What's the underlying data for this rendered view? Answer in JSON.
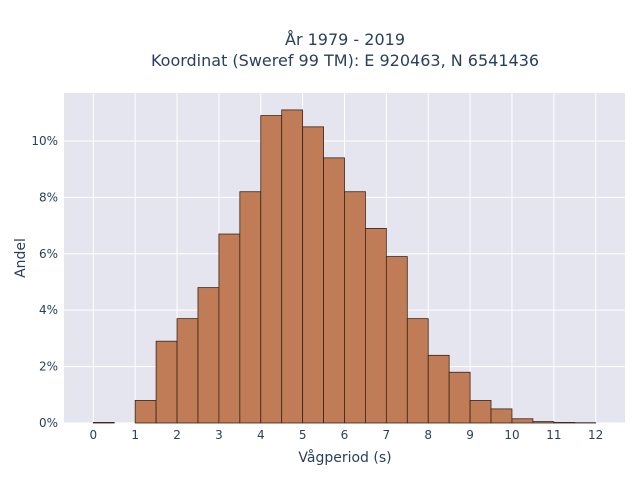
{
  "title_line1": "År 1979 - 2019",
  "title_line2": "Koordinat (Sweref 99 TM): E 920463, N 6541436",
  "colors": {
    "plot_background": "#e5e5ef",
    "bar_fill": "#c07c56",
    "bar_edge": "#3a2418",
    "text": "#2a3f5f"
  },
  "chart_data": {
    "type": "bar",
    "title": "År 1979 - 2019\nKoordinat (Sweref 99 TM): E 920463, N 6541436",
    "xlabel": "Vågperiod (s)",
    "ylabel": "Andel",
    "x_ticks": [
      0,
      1,
      2,
      3,
      4,
      5,
      6,
      7,
      8,
      9,
      10,
      11,
      12
    ],
    "y_ticks": [
      0,
      2,
      4,
      6,
      8,
      10
    ],
    "y_tick_labels": [
      "0%",
      "2%",
      "4%",
      "6%",
      "8%",
      "10%"
    ],
    "xlim": [
      -0.7,
      12.7
    ],
    "ylim": [
      0,
      11.7
    ],
    "bin_width": 0.5,
    "bin_starts": [
      0,
      0.5,
      1,
      1.5,
      2,
      2.5,
      3,
      3.5,
      4,
      4.5,
      5,
      5.5,
      6,
      6.5,
      7,
      7.5,
      8,
      8.5,
      9,
      9.5,
      10,
      10.5,
      11,
      11.5
    ],
    "values": [
      0.02,
      0,
      0.8,
      2.9,
      3.7,
      4.8,
      6.7,
      8.2,
      10.9,
      11.1,
      10.5,
      9.4,
      8.2,
      6.9,
      5.9,
      3.7,
      2.4,
      1.8,
      0.8,
      0.5,
      0.15,
      0.05,
      0.02,
      0.01
    ],
    "grid": true,
    "legend": "none"
  }
}
